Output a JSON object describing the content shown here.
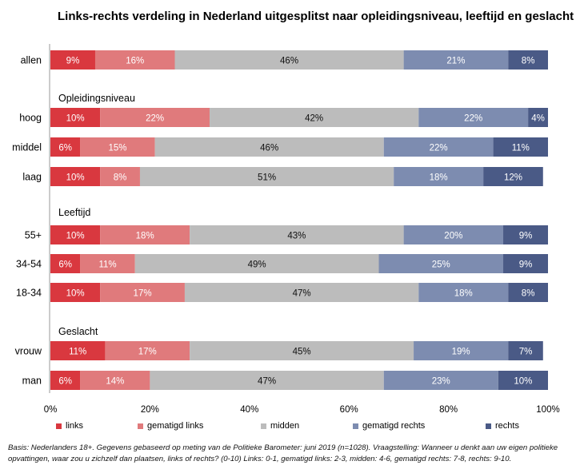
{
  "chart_data": {
    "type": "bar",
    "orientation": "horizontal",
    "stacked": true,
    "title": "Links-rechts verdeling in Nederland uitgesplitst naar opleidingsniveau, leeftijd en geslacht",
    "categories": [
      "allen",
      "hoog",
      "middel",
      "laag",
      "55+",
      "34-54",
      "18-34",
      "vrouw",
      "man"
    ],
    "groups": [
      {
        "label": "",
        "categories": [
          "allen"
        ]
      },
      {
        "label": "Opleidingsniveau",
        "categories": [
          "hoog",
          "middel",
          "laag"
        ]
      },
      {
        "label": "Leeftijd",
        "categories": [
          "55+",
          "34-54",
          "18-34"
        ]
      },
      {
        "label": "Geslacht",
        "categories": [
          "vrouw",
          "man"
        ]
      }
    ],
    "series": [
      {
        "name": "links",
        "color": "#d9383f",
        "values": [
          9,
          10,
          6,
          10,
          10,
          6,
          10,
          11,
          6
        ]
      },
      {
        "name": "gematigd links",
        "color": "#e07a7c",
        "values": [
          16,
          22,
          15,
          8,
          18,
          11,
          17,
          17,
          14
        ]
      },
      {
        "name": "midden",
        "color": "#bcbcbc",
        "values": [
          46,
          42,
          46,
          51,
          43,
          49,
          47,
          45,
          47
        ]
      },
      {
        "name": "gematigd rechts",
        "color": "#7d8cb0",
        "values": [
          21,
          22,
          22,
          18,
          20,
          25,
          18,
          19,
          23
        ]
      },
      {
        "name": "rechts",
        "color": "#4a5a86",
        "values": [
          8,
          4,
          11,
          12,
          9,
          9,
          8,
          7,
          10
        ]
      }
    ],
    "x_ticks": [
      "0%",
      "20%",
      "40%",
      "60%",
      "80%",
      "100%"
    ],
    "xlim": [
      0,
      100
    ],
    "value_suffix": "%",
    "legend_position": "bottom"
  },
  "footnote": "Basis: Nederlanders 18+. Gegevens gebaseerd op meting van de Politieke Barometer: juni 2019 (n=1028). Vraagstelling: Wanneer u denkt aan uw eigen politieke opvattingen, waar zou u zichzelf dan plaatsen, links of rechts? (0-10) Links: 0-1, gematigd links: 2-3, midden: 4-6, gematigd rechts: 7-8, rechts: 9-10."
}
